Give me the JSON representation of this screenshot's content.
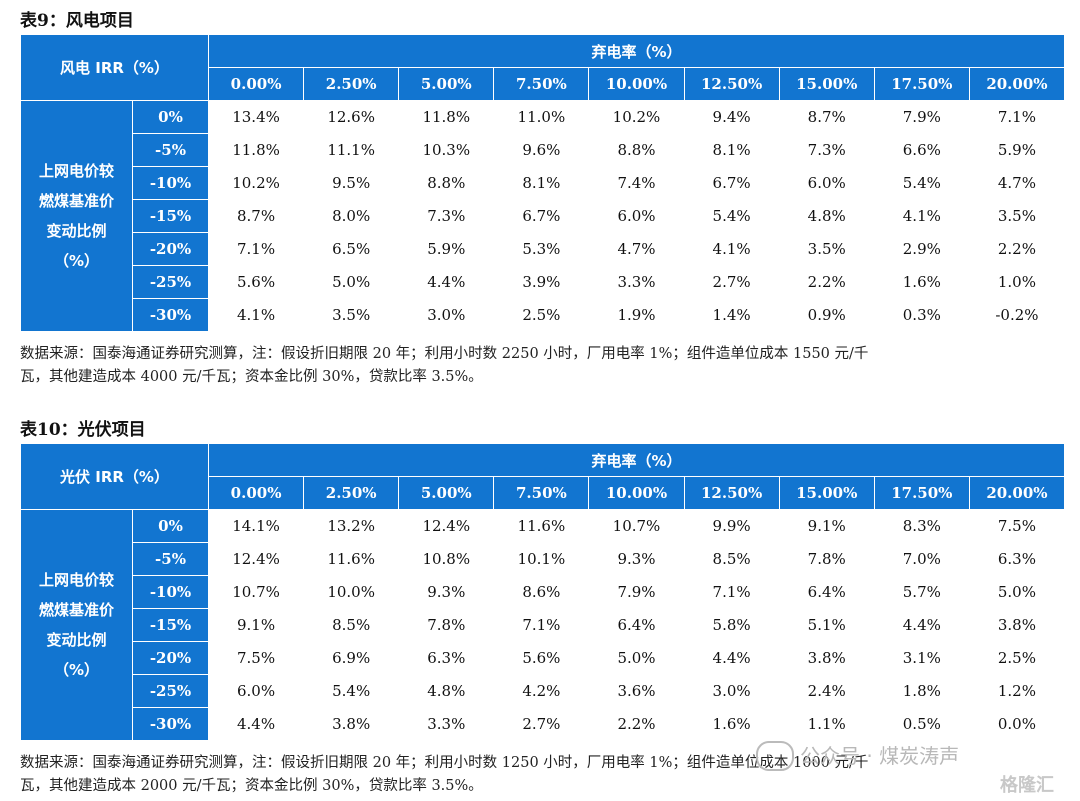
{
  "tables": [
    {
      "title": "表9：风电项目",
      "corner": "风电 IRR（%）",
      "col_group": "弃电率（%）",
      "row_group": "上网电价较燃煤基准价变动比例（%）",
      "row_group_lines": [
        "上网电价较",
        "燃煤基准价",
        "变动比例",
        "（%）"
      ],
      "columns": [
        "0.00%",
        "2.50%",
        "5.00%",
        "7.50%",
        "10.00%",
        "12.50%",
        "15.00%",
        "17.50%",
        "20.00%"
      ],
      "rows": [
        {
          "label": "0%",
          "values": [
            "13.4%",
            "12.6%",
            "11.8%",
            "11.0%",
            "10.2%",
            "9.4%",
            "8.7%",
            "7.9%",
            "7.1%"
          ]
        },
        {
          "label": "-5%",
          "values": [
            "11.8%",
            "11.1%",
            "10.3%",
            "9.6%",
            "8.8%",
            "8.1%",
            "7.3%",
            "6.6%",
            "5.9%"
          ]
        },
        {
          "label": "-10%",
          "values": [
            "10.2%",
            "9.5%",
            "8.8%",
            "8.1%",
            "7.4%",
            "6.7%",
            "6.0%",
            "5.4%",
            "4.7%"
          ]
        },
        {
          "label": "-15%",
          "values": [
            "8.7%",
            "8.0%",
            "7.3%",
            "6.7%",
            "6.0%",
            "5.4%",
            "4.8%",
            "4.1%",
            "3.5%"
          ]
        },
        {
          "label": "-20%",
          "values": [
            "7.1%",
            "6.5%",
            "5.9%",
            "5.3%",
            "4.7%",
            "4.1%",
            "3.5%",
            "2.9%",
            "2.2%"
          ]
        },
        {
          "label": "-25%",
          "values": [
            "5.6%",
            "5.0%",
            "4.4%",
            "3.9%",
            "3.3%",
            "2.7%",
            "2.2%",
            "1.6%",
            "1.0%"
          ]
        },
        {
          "label": "-30%",
          "values": [
            "4.1%",
            "3.5%",
            "3.0%",
            "2.5%",
            "1.9%",
            "1.4%",
            "0.9%",
            "0.3%",
            "-0.2%"
          ]
        }
      ],
      "note_lines": [
        "数据来源：国泰海通证券研究测算，注：假设折旧期限 20 年；利用小时数 2250 小时，厂用电率 1%；组件造单位成本 1550 元/千",
        "瓦，其他建造成本 4000 元/千瓦；资本金比例 30%，贷款比率 3.5%。"
      ]
    },
    {
      "title": "表10：光伏项目",
      "corner": "光伏 IRR（%）",
      "col_group": "弃电率（%）",
      "row_group": "上网电价较燃煤基准价变动比例（%）",
      "row_group_lines": [
        "上网电价较",
        "燃煤基准价",
        "变动比例",
        "（%）"
      ],
      "columns": [
        "0.00%",
        "2.50%",
        "5.00%",
        "7.50%",
        "10.00%",
        "12.50%",
        "15.00%",
        "17.50%",
        "20.00%"
      ],
      "rows": [
        {
          "label": "0%",
          "values": [
            "14.1%",
            "13.2%",
            "12.4%",
            "11.6%",
            "10.7%",
            "9.9%",
            "9.1%",
            "8.3%",
            "7.5%"
          ]
        },
        {
          "label": "-5%",
          "values": [
            "12.4%",
            "11.6%",
            "10.8%",
            "10.1%",
            "9.3%",
            "8.5%",
            "7.8%",
            "7.0%",
            "6.3%"
          ]
        },
        {
          "label": "-10%",
          "values": [
            "10.7%",
            "10.0%",
            "9.3%",
            "8.6%",
            "7.9%",
            "7.1%",
            "6.4%",
            "5.7%",
            "5.0%"
          ]
        },
        {
          "label": "-15%",
          "values": [
            "9.1%",
            "8.5%",
            "7.8%",
            "7.1%",
            "6.4%",
            "5.8%",
            "5.1%",
            "4.4%",
            "3.8%"
          ]
        },
        {
          "label": "-20%",
          "values": [
            "7.5%",
            "6.9%",
            "6.3%",
            "5.6%",
            "5.0%",
            "4.4%",
            "3.8%",
            "3.1%",
            "2.5%"
          ]
        },
        {
          "label": "-25%",
          "values": [
            "6.0%",
            "5.4%",
            "4.8%",
            "4.2%",
            "3.6%",
            "3.0%",
            "2.4%",
            "1.8%",
            "1.2%"
          ]
        },
        {
          "label": "-30%",
          "values": [
            "4.4%",
            "3.8%",
            "3.3%",
            "2.7%",
            "2.2%",
            "1.6%",
            "1.1%",
            "0.5%",
            "0.0%"
          ]
        }
      ],
      "note_lines": [
        "数据来源：国泰海通证券研究测算，注：假设折旧期限 20 年；利用小时数 1250 小时，厂用电率 1%；组件造单位成本 1000 元/千",
        "瓦，其他建造成本 2000 元/千瓦；资本金比例 30%，贷款比率 3.5%。"
      ]
    }
  ],
  "watermark": {
    "text1": "公众号 · 煤炭涛声",
    "text2": "格隆汇"
  }
}
